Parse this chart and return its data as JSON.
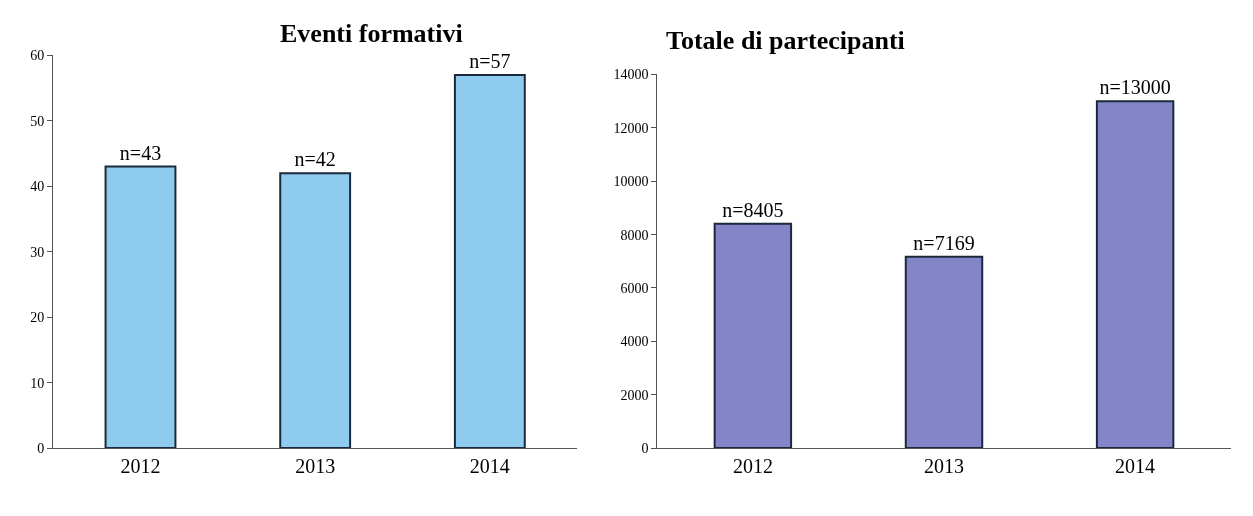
{
  "chart_data": [
    {
      "type": "bar",
      "title": "Eventi formativi",
      "categories": [
        "2012",
        "2013",
        "2014"
      ],
      "values": [
        43,
        42,
        57
      ],
      "value_labels": [
        "n=43",
        "n=42",
        "n=57"
      ],
      "color": "#8ecbee",
      "ylim": [
        0,
        60
      ],
      "yticks": [
        0,
        10,
        20,
        30,
        40,
        50,
        60
      ]
    },
    {
      "type": "bar",
      "title": "Totale di partecipanti",
      "categories": [
        "2012",
        "2013",
        "2014"
      ],
      "values": [
        8405,
        7169,
        13000
      ],
      "value_labels": [
        "n=8405",
        "n=7169",
        "n=13000"
      ],
      "color": "#8484c8",
      "ylim": [
        0,
        14000
      ],
      "yticks": [
        0,
        2000,
        4000,
        6000,
        8000,
        10000,
        12000,
        14000
      ]
    }
  ]
}
